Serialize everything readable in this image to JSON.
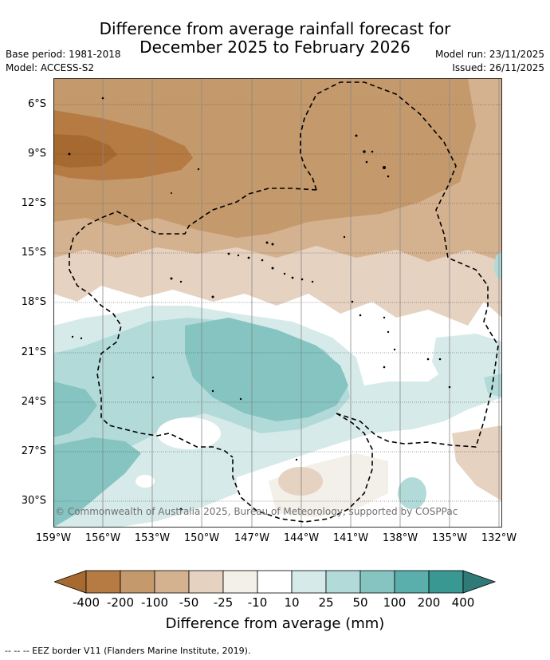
{
  "title": {
    "line1": "Difference from average rainfall forecast for",
    "line2": "December 2025 to February 2026"
  },
  "meta_left": {
    "base_period": "Base period: 1981-2018",
    "model": "Model: ACCESS-S2"
  },
  "meta_right": {
    "model_run": "Model run: 23/11/2025",
    "issued": "Issued: 26/11/2025"
  },
  "map": {
    "lat_labels": [
      "6°S",
      "9°S",
      "12°S",
      "15°S",
      "18°S",
      "21°S",
      "24°S",
      "27°S",
      "30°S"
    ],
    "lon_labels": [
      "159°W",
      "156°W",
      "153°W",
      "150°W",
      "147°W",
      "144°W",
      "141°W",
      "138°W",
      "135°W",
      "132°W"
    ],
    "copyright": "© Commonwealth of Australia 2025, Bureau of Meteorology, supported by COSPPac"
  },
  "colorbar": {
    "labels": [
      "-400",
      "-200",
      "-100",
      "-50",
      "-25",
      "-10",
      "10",
      "25",
      "50",
      "100",
      "200",
      "400"
    ],
    "colors": [
      "#a66a30",
      "#b67a43",
      "#c4996c",
      "#d5b28f",
      "#e6d2c1",
      "#f3efe9",
      "#ffffff",
      "#d6ebe9",
      "#b2dad8",
      "#85c4c1",
      "#5aaeab",
      "#3a9893",
      "#2f7a77"
    ],
    "title": "Difference from average (mm)"
  },
  "legend": {
    "eez": "--  --  -- EEZ border V11 (Flanders Marine Institute, 2019)."
  }
}
